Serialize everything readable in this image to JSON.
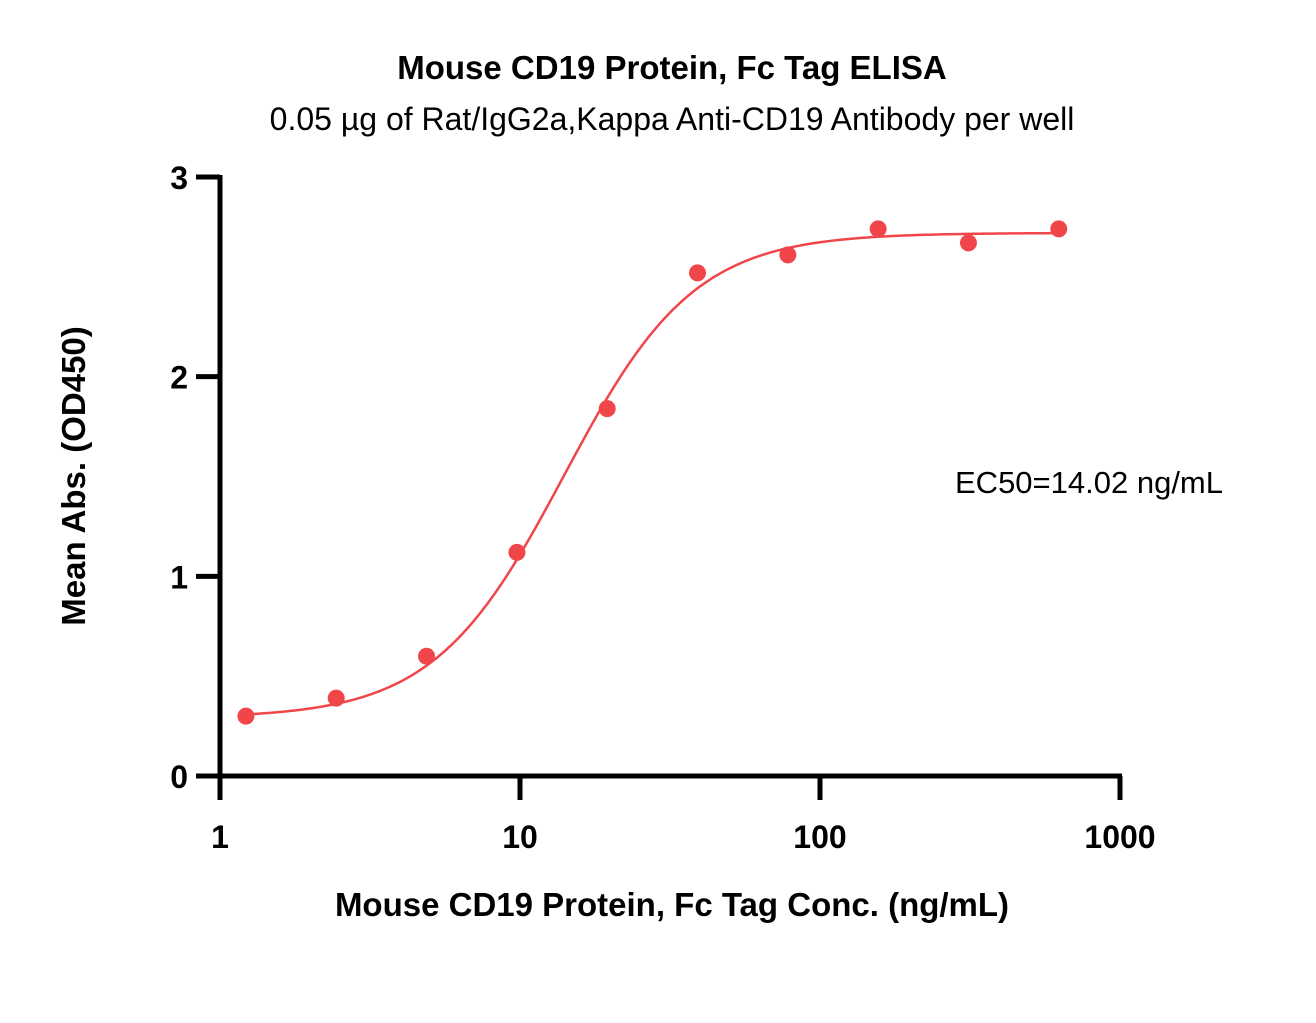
{
  "chart_data": {
    "type": "scatter",
    "title": "Mouse CD19 Protein, Fc Tag ELISA",
    "subtitle": "0.05 µg of Rat/IgG2a,Kappa Anti-CD19 Antibody per well",
    "xlabel": "Mouse CD19 Protein, Fc Tag Conc. (ng/mL)",
    "ylabel": "Mean Abs. (OD450)",
    "x_scale": "log",
    "xlim": [
      1,
      1000
    ],
    "ylim": [
      0,
      3
    ],
    "x_ticks": [
      "1",
      "10",
      "100",
      "1000"
    ],
    "y_ticks": [
      "0",
      "1",
      "2",
      "3"
    ],
    "grid": false,
    "annotation": "EC50=14.02 ng/mL",
    "color": "#f0464a",
    "series": [
      {
        "x": [
          1.22,
          2.44,
          4.88,
          9.77,
          19.53,
          39.06,
          78.13,
          156.25,
          312.5,
          625
        ],
        "y": [
          0.3,
          0.39,
          0.6,
          1.12,
          1.84,
          2.52,
          2.61,
          2.74,
          2.67,
          2.74
        ]
      }
    ],
    "fit": {
      "model": "4PL",
      "bottom": 0.29,
      "top": 2.72,
      "ec50": 14.02,
      "hill": 2.0
    }
  }
}
